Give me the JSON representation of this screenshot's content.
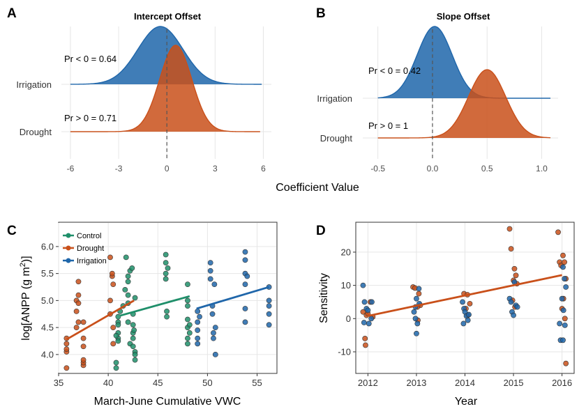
{
  "colors": {
    "irrigation": "#1f66aa",
    "drought": "#c9501a",
    "control": "#1f8f6a",
    "grid": "#e6e6e6"
  },
  "chart_data": [
    {
      "panel": "A",
      "type": "area",
      "title": "Intercept Offset",
      "xlim": [
        -6.3,
        6.5
      ],
      "xticks": [
        -6,
        -3,
        0,
        3,
        6
      ],
      "categories": [
        "Drought",
        "Irrigation"
      ],
      "series": [
        {
          "name": "Irrigation",
          "mean": -0.4,
          "sd": 1.4,
          "range": [
            -6,
            5.9
          ],
          "annotation": "Pr < 0 = 0.64"
        },
        {
          "name": "Drought",
          "mean": 0.55,
          "sd": 1.0,
          "range": [
            -6,
            5.8
          ],
          "annotation": "Pr > 0 = 0.71"
        }
      ]
    },
    {
      "panel": "B",
      "type": "area",
      "title": "Slope Offset",
      "xlim": [
        -0.6,
        1.15
      ],
      "xticks": [
        -0.5,
        0.0,
        0.5,
        1.0
      ],
      "categories": [
        "Drought",
        "Irrigation"
      ],
      "series": [
        {
          "name": "Irrigation",
          "mean": 0.02,
          "sd": 0.16,
          "range": [
            -0.5,
            1.08
          ],
          "annotation": "Pr < 0 = 0.42"
        },
        {
          "name": "Drought",
          "mean": 0.5,
          "sd": 0.17,
          "range": [
            -0.5,
            1.08
          ],
          "annotation": "Pr > 0 = 1"
        }
      ],
      "shared_xlabel": "Coefficient Value"
    },
    {
      "panel": "C",
      "type": "scatter",
      "xlabel": "March-June Cumulative VWC",
      "ylabel": "log[ANPP (g m",
      "ylabel_sup": "2",
      "ylabel_end": ")]",
      "xlim": [
        35,
        57
      ],
      "ylim": [
        3.65,
        6.45
      ],
      "xticks": [
        35,
        40,
        45,
        50,
        55
      ],
      "yticks": [
        4.0,
        4.5,
        5.0,
        5.5,
        6.0
      ],
      "legend_position": "top-left",
      "series": [
        {
          "name": "Control",
          "points": [
            [
              40.8,
              3.85
            ],
            [
              40.8,
              3.75
            ],
            [
              41.0,
              4.7
            ],
            [
              41.0,
              4.6
            ],
            [
              41.0,
              4.4
            ],
            [
              41.0,
              4.3
            ],
            [
              41.0,
              4.25
            ],
            [
              40.8,
              4.35
            ],
            [
              41.0,
              4.55
            ],
            [
              41.2,
              4.8
            ],
            [
              41.5,
              4.9
            ],
            [
              41.7,
              5.2
            ],
            [
              41.8,
              5.8
            ],
            [
              42.0,
              5.45
            ],
            [
              42.0,
              5.35
            ],
            [
              42.0,
              5.1
            ],
            [
              42.0,
              4.95
            ],
            [
              42.0,
              4.6
            ],
            [
              42.2,
              5.55
            ],
            [
              42.2,
              4.2
            ],
            [
              42.5,
              4.75
            ],
            [
              42.5,
              4.55
            ],
            [
              42.5,
              4.4
            ],
            [
              42.5,
              4.3
            ],
            [
              42.7,
              5.05
            ],
            [
              42.7,
              4.05
            ],
            [
              42.7,
              3.9
            ],
            [
              42.7,
              4.0
            ],
            [
              42.5,
              4.15
            ],
            [
              42.6,
              4.45
            ],
            [
              42.4,
              5.6
            ],
            [
              45.8,
              5.85
            ],
            [
              45.8,
              5.7
            ],
            [
              45.8,
              5.5
            ],
            [
              45.8,
              5.4
            ],
            [
              45.9,
              4.8
            ],
            [
              45.9,
              4.7
            ],
            [
              46.0,
              5.6
            ],
            [
              48.0,
              5.3
            ],
            [
              48.0,
              5.0
            ],
            [
              48.0,
              4.9
            ],
            [
              48.0,
              4.65
            ],
            [
              48.0,
              4.5
            ],
            [
              48.0,
              4.3
            ],
            [
              48.0,
              4.2
            ],
            [
              48.2,
              4.4
            ],
            [
              48.2,
              4.55
            ]
          ],
          "fit": [
            [
              41.2,
              4.72
            ],
            [
              48.2,
              5.08
            ]
          ]
        },
        {
          "name": "Drought",
          "points": [
            [
              35.8,
              3.75
            ],
            [
              35.8,
              4.05
            ],
            [
              35.8,
              4.1
            ],
            [
              35.8,
              4.2
            ],
            [
              35.8,
              4.3
            ],
            [
              36.8,
              5.0
            ],
            [
              36.8,
              4.8
            ],
            [
              36.8,
              4.5
            ],
            [
              37.0,
              5.1
            ],
            [
              37.0,
              5.35
            ],
            [
              37.0,
              4.6
            ],
            [
              37.0,
              4.95
            ],
            [
              37.5,
              4.15
            ],
            [
              37.5,
              4.3
            ],
            [
              37.5,
              3.8
            ],
            [
              37.5,
              3.85
            ],
            [
              37.5,
              3.9
            ],
            [
              37.5,
              4.6
            ],
            [
              40.2,
              5.0
            ],
            [
              40.2,
              4.75
            ],
            [
              40.2,
              5.8
            ],
            [
              40.4,
              5.45
            ],
            [
              40.4,
              5.5
            ],
            [
              40.5,
              5.3
            ],
            [
              40.5,
              4.2
            ],
            [
              40.5,
              4.5
            ]
          ],
          "fit": [
            [
              35.8,
              4.28
            ],
            [
              42.6,
              5.0
            ]
          ]
        },
        {
          "name": "Irrigation",
          "points": [
            [
              49.0,
              4.8
            ],
            [
              49.0,
              4.6
            ],
            [
              49.0,
              4.45
            ],
            [
              49.0,
              4.2
            ],
            [
              49.0,
              4.3
            ],
            [
              49.2,
              4.7
            ],
            [
              50.3,
              5.7
            ],
            [
              50.3,
              5.55
            ],
            [
              50.3,
              5.4
            ],
            [
              50.5,
              4.9
            ],
            [
              50.5,
              4.75
            ],
            [
              50.6,
              4.4
            ],
            [
              50.6,
              4.3
            ],
            [
              50.7,
              5.3
            ],
            [
              50.8,
              4.5
            ],
            [
              50.8,
              4.0
            ],
            [
              53.8,
              5.9
            ],
            [
              53.8,
              5.75
            ],
            [
              53.8,
              5.5
            ],
            [
              53.8,
              5.3
            ],
            [
              53.8,
              4.85
            ],
            [
              53.8,
              4.6
            ],
            [
              54.0,
              5.45
            ],
            [
              56.2,
              5.25
            ],
            [
              56.2,
              4.9
            ],
            [
              56.2,
              4.75
            ],
            [
              56.2,
              4.55
            ],
            [
              56.2,
              5.0
            ]
          ],
          "fit": [
            [
              48.9,
              4.85
            ],
            [
              56.2,
              5.25
            ]
          ]
        }
      ]
    },
    {
      "panel": "D",
      "type": "scatter",
      "xlabel": "Year",
      "ylabel": "Sensitivity",
      "xlim": [
        2011.75,
        2016.25
      ],
      "ylim": [
        -16.5,
        29
      ],
      "xticks": [
        2012,
        2013,
        2014,
        2015,
        2016
      ],
      "yticks": [
        -10,
        0,
        10,
        20
      ],
      "series": [
        {
          "name": "Drought",
          "points": [
            [
              2011.95,
              -8
            ],
            [
              2011.94,
              -6
            ],
            [
              2011.9,
              2
            ],
            [
              2011.97,
              1
            ],
            [
              2012.05,
              5
            ],
            [
              2012.1,
              0.5
            ],
            [
              2012.0,
              1.5
            ],
            [
              2012.93,
              9.5
            ],
            [
              2012.97,
              9.2
            ],
            [
              2013.05,
              7.5
            ],
            [
              2013.08,
              4
            ],
            [
              2013.02,
              3.5
            ],
            [
              2013.03,
              -0.5
            ],
            [
              2013.98,
              7.5
            ],
            [
              2014.05,
              7.2
            ],
            [
              2014.1,
              4.5
            ],
            [
              2014.02,
              3
            ],
            [
              2014.06,
              1
            ],
            [
              2014.92,
              27
            ],
            [
              2014.95,
              21
            ],
            [
              2015.02,
              15
            ],
            [
              2015.05,
              13
            ],
            [
              2015.0,
              11.5
            ],
            [
              2015.07,
              10.5
            ],
            [
              2014.98,
              5.5
            ],
            [
              2015.03,
              3.5
            ],
            [
              2015.92,
              26
            ],
            [
              2015.95,
              17
            ],
            [
              2015.98,
              16
            ],
            [
              2016.02,
              19
            ],
            [
              2016.05,
              17
            ],
            [
              2016.08,
              12
            ],
            [
              2016.03,
              6
            ],
            [
              2016.0,
              3
            ],
            [
              2016.06,
              0
            ],
            [
              2016.08,
              -13.5
            ]
          ],
          "fit": [
            [
              2012.0,
              0.8
            ],
            [
              2016.0,
              13.1
            ]
          ]
        },
        {
          "name": "Irrigation",
          "points": [
            [
              2011.9,
              10
            ],
            [
              2011.93,
              5
            ],
            [
              2011.97,
              3
            ],
            [
              2011.92,
              -1.2
            ],
            [
              2012.02,
              -1.5
            ],
            [
              2012.07,
              0
            ],
            [
              2012.08,
              5
            ],
            [
              2012.0,
              2.5
            ],
            [
              2012.95,
              2
            ],
            [
              2012.98,
              3.5
            ],
            [
              2013.0,
              6
            ],
            [
              2013.05,
              9
            ],
            [
              2013.06,
              4.5
            ],
            [
              2012.98,
              0
            ],
            [
              2013.02,
              -1.5
            ],
            [
              2013.0,
              -4.5
            ],
            [
              2013.95,
              5
            ],
            [
              2013.98,
              3
            ],
            [
              2014.0,
              2
            ],
            [
              2014.03,
              0.8
            ],
            [
              2014.06,
              -0.5
            ],
            [
              2013.97,
              -1.5
            ],
            [
              2014.08,
              1.2
            ],
            [
              2014.92,
              6
            ],
            [
              2014.95,
              5
            ],
            [
              2014.97,
              2
            ],
            [
              2015.0,
              1
            ],
            [
              2015.05,
              4
            ],
            [
              2015.08,
              3.5
            ],
            [
              2015.02,
              11
            ],
            [
              2016.02,
              15.5
            ],
            [
              2016.05,
              12
            ],
            [
              2016.08,
              9.5
            ],
            [
              2016.0,
              6
            ],
            [
              2016.03,
              2.5
            ],
            [
              2016.06,
              -2
            ],
            [
              2015.97,
              -6.5
            ],
            [
              2016.02,
              -6.5
            ],
            [
              2015.95,
              -1.5
            ]
          ]
        }
      ]
    }
  ]
}
